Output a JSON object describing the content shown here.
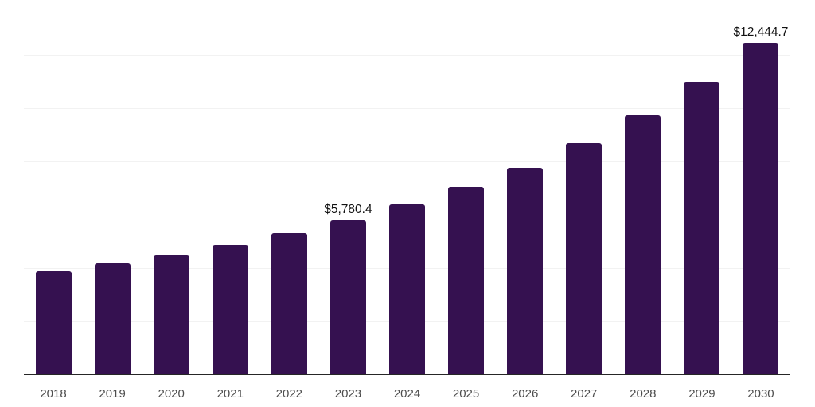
{
  "chart_data": {
    "type": "bar",
    "title": "",
    "xlabel": "",
    "ylabel": "",
    "categories": [
      "2018",
      "2019",
      "2020",
      "2021",
      "2022",
      "2023",
      "2024",
      "2025",
      "2026",
      "2027",
      "2028",
      "2029",
      "2030"
    ],
    "values": [
      3880,
      4180,
      4480,
      4870,
      5310,
      5780.4,
      6390,
      7050,
      7760,
      8690,
      9730,
      10990,
      12444.7
    ],
    "data_labels": [
      {
        "category": "2023",
        "text": "$5,780.4"
      },
      {
        "category": "2030",
        "text": "$12,444.7"
      }
    ],
    "ylim": [
      0,
      14000
    ],
    "gridline_step": 2000,
    "grid": "horizontal-only",
    "legend": "none",
    "y_axis_ticks_visible": false,
    "colors": {
      "bar": "#351150",
      "gridline": "#f2f2f2",
      "axis_line": "#262626",
      "tick_label": "#4d4d4d",
      "data_label": "#111111",
      "background": "#ffffff"
    }
  }
}
